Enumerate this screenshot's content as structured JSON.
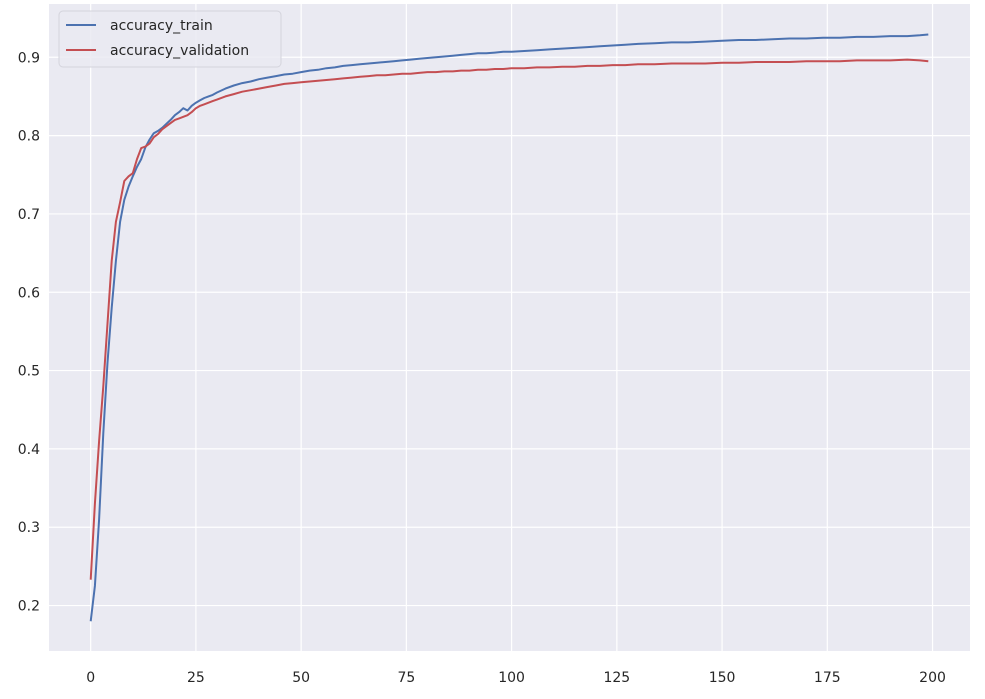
{
  "chart_data": {
    "type": "line",
    "title": "",
    "xlabel": "",
    "ylabel": "",
    "xlim": [
      -9.9,
      208.9
    ],
    "ylim": [
      0.142,
      0.968
    ],
    "xticks": [
      0,
      25,
      50,
      75,
      100,
      125,
      150,
      175,
      200
    ],
    "yticks": [
      0.2,
      0.3,
      0.4,
      0.5,
      0.6,
      0.7,
      0.8,
      0.9
    ],
    "grid": true,
    "legend_position": "top-left",
    "colors": {
      "background": "#eaeaf2",
      "grid": "#ffffff",
      "accuracy_train": "#4c72b0",
      "accuracy_validation": "#c44e52"
    },
    "series": [
      {
        "name": "accuracy_train",
        "key": "accuracy_train",
        "x": [
          0,
          1,
          2,
          3,
          4,
          5,
          6,
          7,
          8,
          9,
          10,
          11,
          12,
          13,
          14,
          15,
          16,
          17,
          18,
          19,
          20,
          21,
          22,
          23,
          24,
          25,
          26,
          27,
          28,
          29,
          30,
          32,
          34,
          36,
          38,
          40,
          42,
          44,
          46,
          48,
          50,
          52,
          54,
          56,
          58,
          60,
          62,
          64,
          66,
          68,
          70,
          72,
          74,
          76,
          78,
          80,
          82,
          84,
          86,
          88,
          90,
          92,
          94,
          96,
          98,
          100,
          103,
          106,
          109,
          112,
          115,
          118,
          121,
          124,
          127,
          130,
          134,
          138,
          142,
          146,
          150,
          154,
          158,
          162,
          166,
          170,
          174,
          178,
          182,
          186,
          190,
          194,
          197,
          199
        ],
        "y": [
          0.18,
          0.225,
          0.31,
          0.42,
          0.51,
          0.58,
          0.64,
          0.69,
          0.718,
          0.735,
          0.748,
          0.76,
          0.77,
          0.785,
          0.795,
          0.803,
          0.806,
          0.81,
          0.815,
          0.82,
          0.826,
          0.83,
          0.835,
          0.832,
          0.838,
          0.842,
          0.845,
          0.848,
          0.85,
          0.852,
          0.855,
          0.86,
          0.864,
          0.867,
          0.869,
          0.872,
          0.874,
          0.876,
          0.878,
          0.879,
          0.881,
          0.883,
          0.884,
          0.886,
          0.887,
          0.889,
          0.89,
          0.891,
          0.892,
          0.893,
          0.894,
          0.895,
          0.896,
          0.897,
          0.898,
          0.899,
          0.9,
          0.901,
          0.902,
          0.903,
          0.904,
          0.905,
          0.905,
          0.906,
          0.907,
          0.907,
          0.908,
          0.909,
          0.91,
          0.911,
          0.912,
          0.913,
          0.914,
          0.915,
          0.916,
          0.917,
          0.918,
          0.919,
          0.919,
          0.92,
          0.921,
          0.922,
          0.922,
          0.923,
          0.924,
          0.924,
          0.925,
          0.925,
          0.926,
          0.926,
          0.927,
          0.927,
          0.928,
          0.929
        ]
      },
      {
        "name": "accuracy_validation",
        "key": "accuracy_validation",
        "x": [
          0,
          1,
          2,
          3,
          4,
          5,
          6,
          7,
          8,
          9,
          10,
          11,
          12,
          13,
          14,
          15,
          16,
          17,
          18,
          19,
          20,
          21,
          22,
          23,
          24,
          25,
          26,
          27,
          28,
          29,
          30,
          32,
          34,
          36,
          38,
          40,
          42,
          44,
          46,
          48,
          50,
          52,
          54,
          56,
          58,
          60,
          62,
          64,
          66,
          68,
          70,
          72,
          74,
          76,
          78,
          80,
          82,
          84,
          86,
          88,
          90,
          92,
          94,
          96,
          98,
          100,
          103,
          106,
          109,
          112,
          115,
          118,
          121,
          124,
          127,
          130,
          134,
          138,
          142,
          146,
          150,
          154,
          158,
          162,
          166,
          170,
          174,
          178,
          182,
          186,
          190,
          194,
          197,
          199
        ],
        "y": [
          0.233,
          0.33,
          0.41,
          0.48,
          0.56,
          0.64,
          0.69,
          0.715,
          0.742,
          0.748,
          0.752,
          0.77,
          0.784,
          0.786,
          0.79,
          0.798,
          0.802,
          0.808,
          0.812,
          0.816,
          0.82,
          0.822,
          0.824,
          0.826,
          0.83,
          0.835,
          0.838,
          0.84,
          0.842,
          0.844,
          0.846,
          0.85,
          0.853,
          0.856,
          0.858,
          0.86,
          0.862,
          0.864,
          0.866,
          0.867,
          0.868,
          0.869,
          0.87,
          0.871,
          0.872,
          0.873,
          0.874,
          0.875,
          0.876,
          0.877,
          0.877,
          0.878,
          0.879,
          0.879,
          0.88,
          0.881,
          0.881,
          0.882,
          0.882,
          0.883,
          0.883,
          0.884,
          0.884,
          0.885,
          0.885,
          0.886,
          0.886,
          0.887,
          0.887,
          0.888,
          0.888,
          0.889,
          0.889,
          0.89,
          0.89,
          0.891,
          0.891,
          0.892,
          0.892,
          0.892,
          0.893,
          0.893,
          0.894,
          0.894,
          0.894,
          0.895,
          0.895,
          0.895,
          0.896,
          0.896,
          0.896,
          0.897,
          0.896,
          0.895
        ]
      }
    ]
  }
}
